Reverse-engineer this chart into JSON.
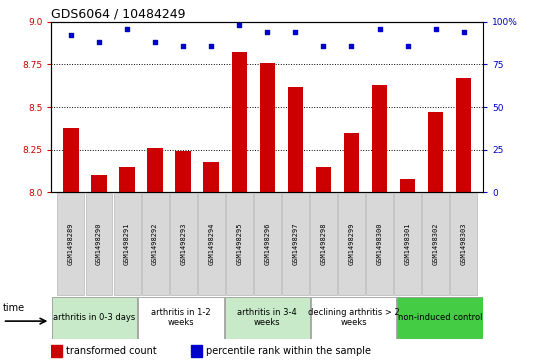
{
  "title": "GDS6064 / 10484249",
  "samples": [
    "GSM1498289",
    "GSM1498290",
    "GSM1498291",
    "GSM1498292",
    "GSM1498293",
    "GSM1498294",
    "GSM1498295",
    "GSM1498296",
    "GSM1498297",
    "GSM1498298",
    "GSM1498299",
    "GSM1498300",
    "GSM1498301",
    "GSM1498302",
    "GSM1498303"
  ],
  "bar_values": [
    8.38,
    8.1,
    8.15,
    8.26,
    8.24,
    8.18,
    8.82,
    8.76,
    8.62,
    8.15,
    8.35,
    8.63,
    8.08,
    8.47,
    8.67
  ],
  "dot_pct": [
    92,
    88,
    96,
    88,
    86,
    86,
    98,
    94,
    94,
    86,
    86,
    96,
    86,
    96,
    94
  ],
  "ylim_left": [
    8.0,
    9.0
  ],
  "ylim_right": [
    0,
    100
  ],
  "yticks_left": [
    8.0,
    8.25,
    8.5,
    8.75,
    9.0
  ],
  "yticks_right": [
    0,
    25,
    50,
    75,
    100
  ],
  "bar_color": "#cc0000",
  "dot_color": "#0000cc",
  "groups": [
    {
      "label": "arthritis in 0-3 days",
      "start": 0,
      "end": 3,
      "color": "#c8eac8"
    },
    {
      "label": "arthritis in 1-2\nweeks",
      "start": 3,
      "end": 6,
      "color": "#ffffff"
    },
    {
      "label": "arthritis in 3-4\nweeks",
      "start": 6,
      "end": 9,
      "color": "#c8eac8"
    },
    {
      "label": "declining arthritis > 2\nweeks",
      "start": 9,
      "end": 12,
      "color": "#ffffff"
    },
    {
      "label": "non-induced control",
      "start": 12,
      "end": 15,
      "color": "#44cc44"
    }
  ],
  "legend_bar_label": "transformed count",
  "legend_dot_label": "percentile rank within the sample",
  "time_label": "time",
  "title_fontsize": 9,
  "tick_fontsize": 6.5,
  "group_fontsize": 6,
  "sample_fontsize": 5,
  "legend_fontsize": 7
}
